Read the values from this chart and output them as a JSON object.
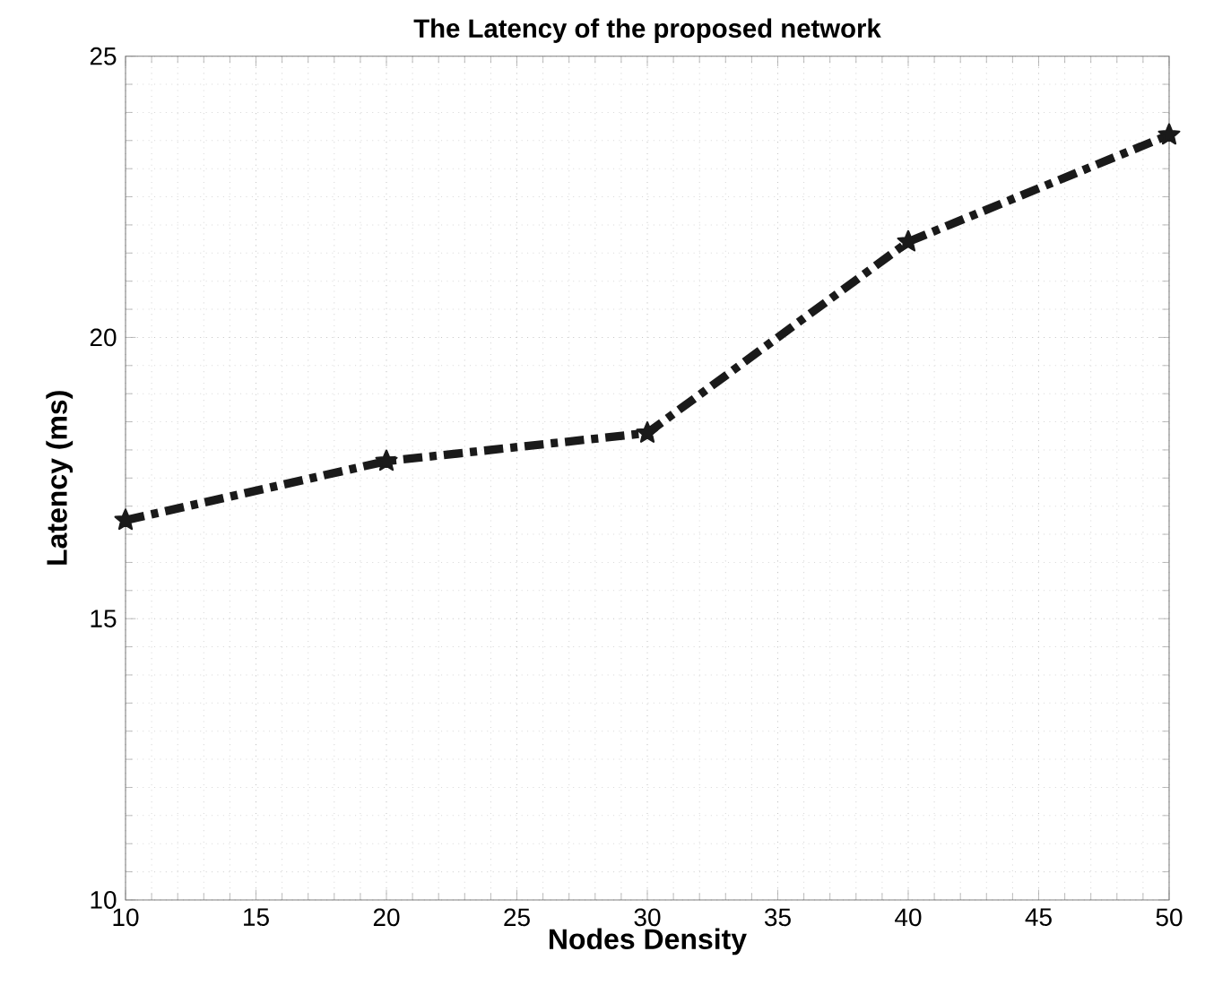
{
  "chart_data": {
    "type": "line",
    "title": "The Latency of the proposed network",
    "xlabel": "Nodes Density",
    "ylabel": "Latency (ms)",
    "x": [
      10,
      20,
      30,
      40,
      50
    ],
    "series": [
      {
        "color": "#1a1a1a",
        "values": [
          16.75,
          17.8,
          18.3,
          21.7,
          23.6
        ]
      }
    ],
    "xlim": [
      10,
      50
    ],
    "ylim": [
      10,
      25
    ],
    "xticks": [
      10,
      15,
      20,
      25,
      30,
      35,
      40,
      45,
      50
    ],
    "yticks": [
      10,
      15,
      20,
      25
    ],
    "grid": true,
    "marker": "star",
    "line_style": "dashed"
  }
}
